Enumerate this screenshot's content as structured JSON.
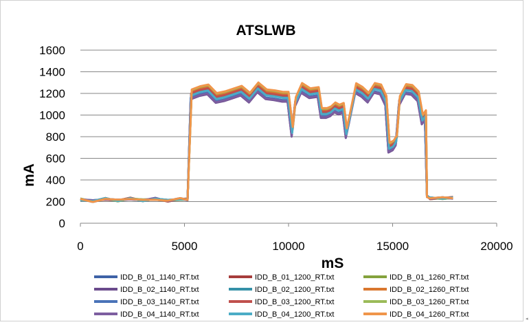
{
  "chart_data": {
    "type": "line",
    "title": "ATSLWB",
    "xlabel": "mS",
    "ylabel": "mA",
    "xlim": [
      0,
      20000
    ],
    "ylim": [
      0,
      1600
    ],
    "x_ticks": [
      "0",
      "5000",
      "10000",
      "15000",
      "20000"
    ],
    "y_ticks": [
      "0",
      "200",
      "400",
      "600",
      "800",
      "1000",
      "1200",
      "1400",
      "1600"
    ],
    "grid": "horizontal",
    "legend_position": "bottom",
    "legend_columns": 3,
    "series": [
      {
        "name": "IDD_B_01_1140_RT.txt",
        "color": "#3e62a6",
        "offset": -40
      },
      {
        "name": "IDD_B_01_1200_RT.txt",
        "color": "#a63c3b",
        "offset": 0
      },
      {
        "name": "IDD_B_01_1260_RT.txt",
        "color": "#84a23c",
        "offset": 30
      },
      {
        "name": "IDD_B_02_1140_RT.txt",
        "color": "#6a4a8c",
        "offset": -50
      },
      {
        "name": "IDD_B_02_1200_RT.txt",
        "color": "#3591a8",
        "offset": -10
      },
      {
        "name": "IDD_B_02_1260_RT.txt",
        "color": "#d9772e",
        "offset": 20
      },
      {
        "name": "IDD_B_03_1140_RT.txt",
        "color": "#4a73b8",
        "offset": -35
      },
      {
        "name": "IDD_B_03_1200_RT.txt",
        "color": "#c0504d",
        "offset": 5
      },
      {
        "name": "IDD_B_03_1260_RT.txt",
        "color": "#9bbb59",
        "offset": 35
      },
      {
        "name": "IDD_B_04_1140_RT.txt",
        "color": "#7d5ea0",
        "offset": -45
      },
      {
        "name": "IDD_B_04_1200_RT.txt",
        "color": "#4bacc6",
        "offset": -15
      },
      {
        "name": "IDD_B_04_1260_RT.txt",
        "color": "#f0954a",
        "offset": 40
      }
    ],
    "base_profile": [
      [
        0,
        220
      ],
      [
        600,
        205
      ],
      [
        1200,
        225
      ],
      [
        1800,
        210
      ],
      [
        2400,
        228
      ],
      [
        3000,
        212
      ],
      [
        3600,
        226
      ],
      [
        4200,
        208
      ],
      [
        4800,
        224
      ],
      [
        5150,
        220
      ],
      [
        5300,
        1220
      ],
      [
        5700,
        1190
      ],
      [
        6100,
        1230
      ],
      [
        6500,
        1175
      ],
      [
        6900,
        1215
      ],
      [
        7300,
        1180
      ],
      [
        7700,
        1230
      ],
      [
        8100,
        1190
      ],
      [
        8500,
        1225
      ],
      [
        8900,
        1185
      ],
      [
        9300,
        1200
      ],
      [
        9700,
        1210
      ],
      [
        9950,
        1150
      ],
      [
        10150,
        850
      ],
      [
        10300,
        1150
      ],
      [
        10600,
        1220
      ],
      [
        11000,
        1195
      ],
      [
        11400,
        1230
      ],
      [
        11550,
        1060
      ],
      [
        11800,
        1000
      ],
      [
        12000,
        1040
      ],
      [
        12200,
        1100
      ],
      [
        12400,
        1020
      ],
      [
        12600,
        1060
      ],
      [
        12750,
        850
      ],
      [
        12900,
        1010
      ],
      [
        13200,
        1230
      ],
      [
        13500,
        1220
      ],
      [
        13800,
        1190
      ],
      [
        14100,
        1220
      ],
      [
        14400,
        1230
      ],
      [
        14650,
        1150
      ],
      [
        14800,
        740
      ],
      [
        15000,
        700
      ],
      [
        15150,
        770
      ],
      [
        15300,
        1160
      ],
      [
        15600,
        1210
      ],
      [
        15900,
        1225
      ],
      [
        16200,
        1190
      ],
      [
        16400,
        1000
      ],
      [
        16550,
        980
      ],
      [
        16650,
        250
      ],
      [
        16800,
        230
      ],
      [
        17400,
        232
      ],
      [
        17900,
        235
      ]
    ]
  }
}
